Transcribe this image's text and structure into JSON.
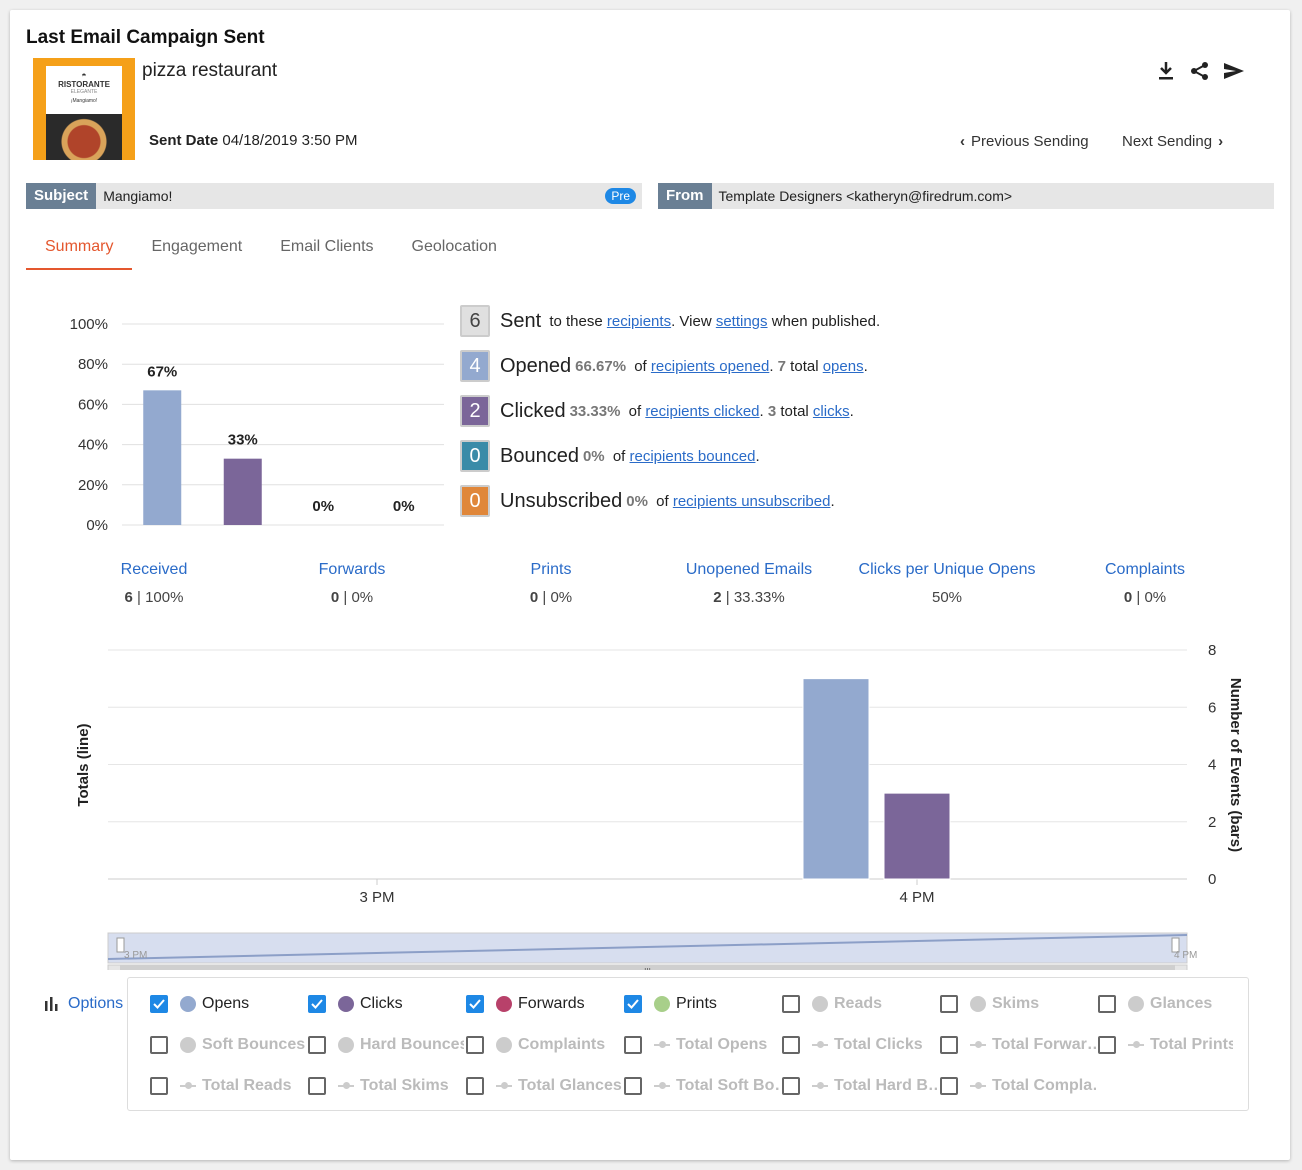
{
  "header": {
    "title": "Last Email Campaign Sent",
    "campaign_name": "pizza restaurant",
    "sent_date_label": "Sent Date",
    "sent_date_value": "04/18/2019 3:50 PM",
    "prev_sending": "Previous Sending",
    "next_sending": "Next Sending",
    "thumbnail_texts": {
      "brand": "RISTORANTE",
      "tagline": "ELEGANTE",
      "line": "¡Mangiamo!"
    },
    "icons": [
      "download-icon",
      "share-icon",
      "send-icon"
    ]
  },
  "subject": {
    "tag": "Subject",
    "value": "Mangiamo!",
    "badge": "Pre"
  },
  "from": {
    "tag": "From",
    "value": "Template Designers <katheryn@firedrum.com>"
  },
  "tabs": [
    {
      "label": "Summary",
      "active": true
    },
    {
      "label": "Engagement",
      "active": false
    },
    {
      "label": "Email Clients",
      "active": false
    },
    {
      "label": "Geolocation",
      "active": false
    }
  ],
  "stats": {
    "sent": {
      "count": "6",
      "label": "Sent",
      "t1": " to these ",
      "link1": "recipients",
      "t2": ". View ",
      "link2": "settings",
      "t3": " when published."
    },
    "opened": {
      "count": "4",
      "label": "Opened",
      "pct": "66.67%",
      "t1": " of ",
      "link1": "recipients opened",
      "t2": ". ",
      "total": "7",
      "t3": " total ",
      "link2": "opens",
      "t4": "."
    },
    "clicked": {
      "count": "2",
      "label": "Clicked",
      "pct": "33.33%",
      "t1": " of ",
      "link1": "recipients clicked",
      "t2": ". ",
      "total": "3",
      "t3": " total ",
      "link2": "clicks",
      "t4": "."
    },
    "bounced": {
      "count": "0",
      "label": "Bounced",
      "pct": "0%",
      "t1": " of ",
      "link1": "recipients bounced",
      "t2": "."
    },
    "unsubscribed": {
      "count": "0",
      "label": "Unsubscribed",
      "pct": "0%",
      "t1": " of ",
      "link1": "recipients unsubscribed",
      "t2": "."
    },
    "colors": {
      "sent": "#e0e0e0",
      "opened": "#93a9cf",
      "clicked": "#7b6699",
      "bounced": "#3a8ba8",
      "unsubscribed": "#e0873a"
    }
  },
  "metrics": [
    {
      "name": "Received",
      "count": "6",
      "sep": " | ",
      "pct": "100%"
    },
    {
      "name": "Forwards",
      "count": "0",
      "sep": " | ",
      "pct": "0%"
    },
    {
      "name": "Prints",
      "count": "0",
      "sep": " | ",
      "pct": "0%"
    },
    {
      "name": "Unopened Emails",
      "count": "2",
      "sep": " | ",
      "pct": "33.33%"
    },
    {
      "name": "Clicks per Unique Opens",
      "count": "",
      "sep": "",
      "pct": "50%"
    },
    {
      "name": "Complaints",
      "count": "0",
      "sep": " | ",
      "pct": "0%"
    }
  ],
  "chart_data": [
    {
      "type": "bar",
      "categories": [
        "Opened",
        "Clicked",
        "Bounced",
        "Unsubscribed"
      ],
      "values": [
        67,
        33,
        0,
        0
      ],
      "data_labels": [
        "67%",
        "33%",
        "0%",
        "0%"
      ],
      "colors": [
        "#93a9cf",
        "#7b6699",
        "#3a8ba8",
        "#e0873a"
      ],
      "ylim": [
        0,
        100
      ],
      "yticks": [
        "0%",
        "20%",
        "40%",
        "60%",
        "80%",
        "100%"
      ],
      "grid": true
    },
    {
      "type": "bar",
      "x_ticks": [
        "3 PM",
        "4 PM"
      ],
      "series": [
        {
          "name": "Opens",
          "values": [
            0,
            7
          ],
          "color": "#93a9cf"
        },
        {
          "name": "Clicks",
          "values": [
            0,
            3
          ],
          "color": "#7b6699"
        }
      ],
      "ylabel_left": "Totals (line)",
      "ylabel_right": "Number of Events (bars)",
      "yticks_right": [
        "0",
        "2",
        "4",
        "6",
        "8"
      ],
      "ylim": [
        0,
        8
      ],
      "navigator_labels": [
        "3 PM",
        "4 PM"
      ],
      "grid": true
    }
  ],
  "options": {
    "label": "Options",
    "items": [
      {
        "label": "Opens",
        "checked": true,
        "color": "#93a9cf",
        "marker": "dot"
      },
      {
        "label": "Clicks",
        "checked": true,
        "color": "#7b6699",
        "marker": "dot"
      },
      {
        "label": "Forwards",
        "checked": true,
        "color": "#b8416a",
        "marker": "dot"
      },
      {
        "label": "Prints",
        "checked": true,
        "color": "#a8cf8a",
        "marker": "dot"
      },
      {
        "label": "Reads",
        "checked": false,
        "color": "#cccccc",
        "marker": "dot"
      },
      {
        "label": "Skims",
        "checked": false,
        "color": "#cccccc",
        "marker": "dot"
      },
      {
        "label": "Glances",
        "checked": false,
        "color": "#cccccc",
        "marker": "dot"
      },
      {
        "label": "Soft Bounces",
        "checked": false,
        "color": "#cccccc",
        "marker": "dot"
      },
      {
        "label": "Hard Bounces",
        "checked": false,
        "color": "#cccccc",
        "marker": "dot"
      },
      {
        "label": "Complaints",
        "checked": false,
        "color": "#cccccc",
        "marker": "dot"
      },
      {
        "label": "Total Opens",
        "checked": false,
        "color": "#cccccc",
        "marker": "line"
      },
      {
        "label": "Total Clicks",
        "checked": false,
        "color": "#cccccc",
        "marker": "line"
      },
      {
        "label": "Total Forwar…",
        "checked": false,
        "color": "#cccccc",
        "marker": "line"
      },
      {
        "label": "Total Prints",
        "checked": false,
        "color": "#cccccc",
        "marker": "line"
      },
      {
        "label": "Total Reads",
        "checked": false,
        "color": "#cccccc",
        "marker": "line"
      },
      {
        "label": "Total Skims",
        "checked": false,
        "color": "#cccccc",
        "marker": "line"
      },
      {
        "label": "Total Glances",
        "checked": false,
        "color": "#cccccc",
        "marker": "line"
      },
      {
        "label": "Total Soft Bo…",
        "checked": false,
        "color": "#cccccc",
        "marker": "line"
      },
      {
        "label": "Total Hard B…",
        "checked": false,
        "color": "#cccccc",
        "marker": "line"
      },
      {
        "label": "Total Compla…",
        "checked": false,
        "color": "#cccccc",
        "marker": "line"
      }
    ]
  }
}
